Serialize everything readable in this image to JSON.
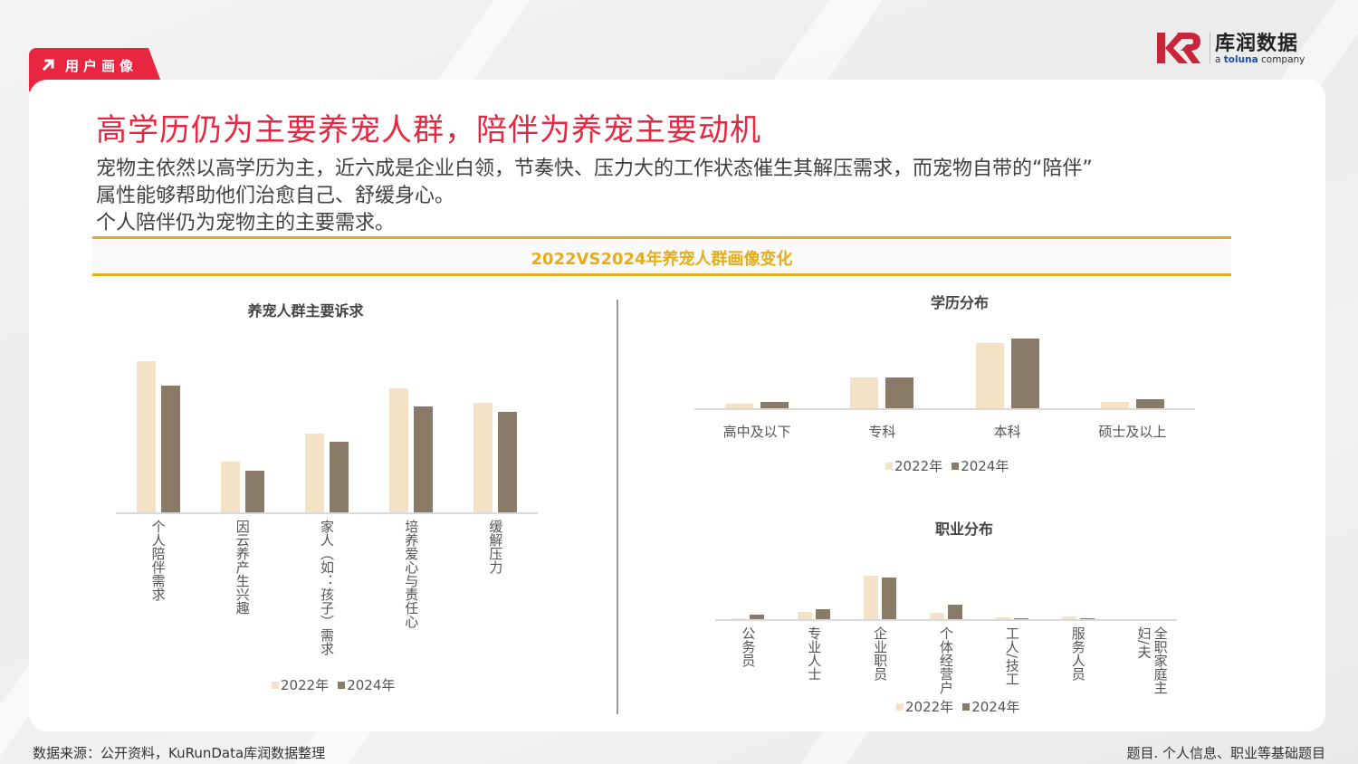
{
  "header": {
    "section_tag": "用户画像",
    "logo": {
      "brand_cn": "库润数据",
      "tagline_prefix": "a ",
      "tagline_brand": "toluna",
      "tagline_suffix": " company"
    }
  },
  "slide": {
    "title": "高学历仍为主要养宠人群，陪伴为养宠主要动机",
    "description_lines": [
      "宠物主依然以高学历为主，近六成是企业白领，节奏快、压力大的工作状态催生其解压需求，而宠物自带的“陪伴”",
      "属性能够帮助他们治愈自己、舒缓身心。",
      "个人陪伴仍为宠物主的主要需求。"
    ],
    "band_title": "2022VS2024年养宠人群画像变化"
  },
  "colors": {
    "accent_red": "#e8263f",
    "accent_gold": "#e6ac19",
    "series_2022": "#f3e2c5",
    "series_2024": "#8a7b69"
  },
  "legend": {
    "s2022": "2022年",
    "s2024": "2024年"
  },
  "chart_data": [
    {
      "type": "bar",
      "title": "养宠人群主要诉求",
      "categories": [
        "个人陪伴需求",
        "因云养产生兴趣",
        "家人（如：孩子）需求",
        "培养爱心与责任心",
        "缓解压力"
      ],
      "series": [
        {
          "name": "2022年",
          "values": [
            167,
            56,
            87,
            137,
            121
          ]
        },
        {
          "name": "2024年",
          "values": [
            140,
            46,
            78,
            117,
            111
          ]
        }
      ],
      "xlabel": "",
      "ylabel": "",
      "grid": false,
      "legend_position": "bottom",
      "note": "values are relative bar heights; no axis values shown"
    },
    {
      "type": "bar",
      "title": "学历分布",
      "categories": [
        "高中及以下",
        "专科",
        "本科",
        "硕士及以上"
      ],
      "series": [
        {
          "name": "2022年",
          "values": [
            5,
            34,
            72,
            7
          ]
        },
        {
          "name": "2024年",
          "values": [
            7,
            34,
            77,
            10
          ]
        }
      ],
      "xlabel": "",
      "ylabel": "",
      "grid": false,
      "legend_position": "bottom",
      "note": "values are relative bar heights; no axis values shown"
    },
    {
      "type": "bar",
      "title": "职业分布",
      "categories": [
        "公务员",
        "专业人士",
        "企业职员",
        "个体经营户",
        "工人/技工",
        "服务人员",
        "全职家庭主妇/夫"
      ],
      "series": [
        {
          "name": "2022年",
          "values": [
            1,
            8,
            48,
            7,
            2,
            3,
            0
          ]
        },
        {
          "name": "2024年",
          "values": [
            5,
            11,
            46,
            16,
            1,
            1,
            0
          ]
        }
      ],
      "xlabel": "",
      "ylabel": "",
      "grid": false,
      "legend_position": "bottom",
      "note": "values are relative bar heights; no axis values shown"
    }
  ],
  "footer": {
    "source": "数据来源：公开资料，KuRunData库润数据整理",
    "question": "题目. 个人信息、职业等基础题目"
  }
}
